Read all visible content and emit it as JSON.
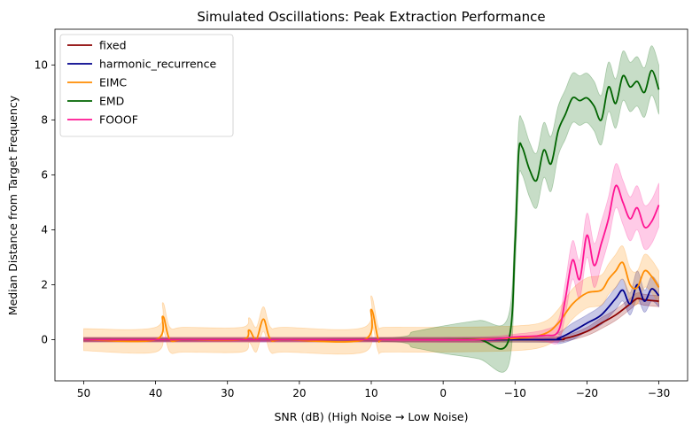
{
  "chart_data": {
    "type": "line",
    "title": "Simulated Oscillations: Peak Extraction Performance",
    "xlabel": "SNR (dB) (High Noise → Low Noise)",
    "ylabel": "Median Distance from Target Frequency",
    "xlim": [
      54,
      -34
    ],
    "ylim": [
      -1.5,
      11.3
    ],
    "x_reversed": true,
    "xticks": [
      50,
      40,
      30,
      20,
      10,
      0,
      -10,
      -20,
      -30
    ],
    "xtick_labels": [
      "50",
      "40",
      "30",
      "20",
      "10",
      "0",
      "−10",
      "−20",
      "−30"
    ],
    "yticks": [
      0,
      2,
      4,
      6,
      8,
      10
    ],
    "ytick_labels": [
      "0",
      "2",
      "4",
      "6",
      "8",
      "10"
    ],
    "grid": false,
    "legend_position": "top-left",
    "series": [
      {
        "name": "fixed",
        "color": "#8b0000",
        "x": [
          50,
          30,
          10,
          -14,
          -17,
          -20,
          -22,
          -24,
          -26,
          -27,
          -28,
          -30
        ],
        "y": [
          0,
          0,
          0,
          0,
          0.05,
          0.3,
          0.6,
          0.9,
          1.3,
          1.5,
          1.45,
          1.4
        ],
        "band": [
          0.08,
          0.08,
          0.08,
          0.08,
          0.1,
          0.15,
          0.2,
          0.2,
          0.2,
          0.2,
          0.2,
          0.2
        ]
      },
      {
        "name": "harmonic_recurrence",
        "color": "#00008b",
        "x": [
          50,
          30,
          10,
          -14,
          -16,
          -18,
          -20,
          -22,
          -24,
          -25,
          -26,
          -27,
          -28,
          -29,
          -30
        ],
        "y": [
          0,
          0,
          0,
          0,
          0.05,
          0.3,
          0.6,
          0.9,
          1.5,
          1.8,
          1.3,
          2.0,
          1.4,
          1.85,
          1.6
        ],
        "band": [
          0.08,
          0.08,
          0.08,
          0.1,
          0.2,
          0.3,
          0.3,
          0.35,
          0.4,
          0.4,
          0.4,
          0.5,
          0.4,
          0.45,
          0.4
        ]
      },
      {
        "name": "EIMC",
        "color": "#ff8c00",
        "x": [
          50,
          40,
          39,
          38,
          36,
          28,
          27,
          26,
          25,
          24,
          22,
          11,
          10,
          9,
          8,
          0,
          -10,
          -14,
          -16,
          -18,
          -20,
          -22,
          -23,
          -24,
          -25,
          -26,
          -27,
          -28,
          -29,
          -30
        ],
        "y": [
          0,
          0,
          0.85,
          0,
          0,
          0,
          0.35,
          0,
          0.75,
          0,
          0,
          0,
          1.1,
          0,
          0,
          0,
          0.05,
          0.2,
          0.6,
          1.3,
          1.7,
          1.8,
          2.2,
          2.5,
          2.8,
          2.0,
          1.9,
          2.5,
          2.3,
          1.9
        ],
        "band": [
          0.4,
          0.45,
          0.5,
          0.45,
          0.45,
          0.45,
          0.45,
          0.45,
          0.45,
          0.45,
          0.45,
          0.45,
          0.5,
          0.45,
          0.45,
          0.45,
          0.45,
          0.45,
          0.5,
          0.55,
          0.55,
          0.55,
          0.55,
          0.6,
          0.6,
          0.6,
          0.6,
          0.6,
          0.6,
          0.6
        ]
      },
      {
        "name": "EMD",
        "color": "#006400",
        "x": [
          50,
          10,
          4,
          0,
          -5,
          -9,
          -10,
          -10.5,
          -11,
          -12,
          -13,
          -14,
          -15,
          -16,
          -17,
          -18,
          -19,
          -20,
          -21,
          -22,
          -23,
          -24,
          -25,
          -26,
          -27,
          -28,
          -29,
          -30
        ],
        "y": [
          0,
          0,
          0,
          0,
          0,
          -0.1,
          3.5,
          6.8,
          7.0,
          6.2,
          5.8,
          6.9,
          6.4,
          7.6,
          8.2,
          8.8,
          8.7,
          8.8,
          8.5,
          8.0,
          9.2,
          8.6,
          9.6,
          9.2,
          9.4,
          9.0,
          9.8,
          9.1
        ],
        "band": [
          0.05,
          0.05,
          0.3,
          0.5,
          0.7,
          0.9,
          1.0,
          1.0,
          1.0,
          1.0,
          1.0,
          1.0,
          1.0,
          0.9,
          0.9,
          0.9,
          0.9,
          0.9,
          0.9,
          0.9,
          0.9,
          0.9,
          0.9,
          0.9,
          0.9,
          0.9,
          0.9,
          0.9
        ]
      },
      {
        "name": "FOOOF",
        "color": "#ff1493",
        "x": [
          50,
          30,
          10,
          -5,
          -10,
          -14,
          -16,
          -17,
          -18,
          -19,
          -20,
          -21,
          -22,
          -23,
          -24,
          -25,
          -26,
          -27,
          -28,
          -29,
          -30
        ],
        "y": [
          0,
          0,
          0,
          0,
          0.1,
          0.15,
          0.3,
          1.5,
          2.9,
          2.2,
          3.8,
          2.7,
          3.5,
          4.4,
          5.6,
          5.0,
          4.4,
          4.8,
          4.1,
          4.3,
          4.9
        ],
        "band": [
          0.08,
          0.08,
          0.08,
          0.1,
          0.1,
          0.2,
          0.4,
          0.6,
          0.7,
          0.7,
          0.8,
          0.8,
          0.8,
          0.8,
          0.8,
          0.8,
          0.8,
          0.8,
          0.8,
          0.8,
          0.8
        ]
      }
    ]
  }
}
